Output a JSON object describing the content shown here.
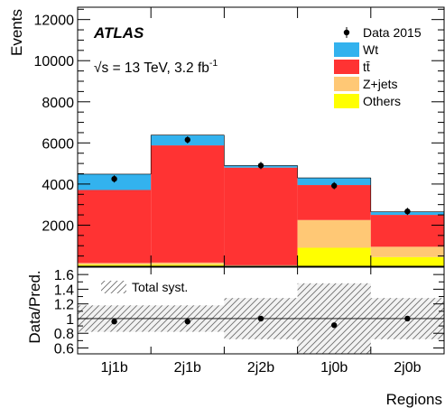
{
  "chart_data": {
    "type": "bar",
    "stacked": true,
    "categories": [
      "1j1b",
      "2j1b",
      "2j2b",
      "1j0b",
      "2j0b"
    ],
    "xlabel": "Regions",
    "ylabel": "Events",
    "ylim": [
      0,
      12600
    ],
    "yticks": [
      2000,
      4000,
      6000,
      8000,
      10000,
      12000
    ],
    "series": [
      {
        "name": "Others",
        "color": "#ffff00",
        "values": [
          80,
          80,
          30,
          900,
          450
        ]
      },
      {
        "name": "Z+jets",
        "color": "#ffc875",
        "values": [
          80,
          100,
          20,
          1350,
          500
        ]
      },
      {
        "name": "tt̄",
        "color": "#ff3333",
        "values": [
          3550,
          5700,
          4750,
          1700,
          1550
        ]
      },
      {
        "name": "Wt",
        "color": "#33b2ee",
        "values": [
          770,
          500,
          100,
          350,
          150
        ]
      }
    ],
    "data": {
      "name": "Data 2015",
      "values": [
        4250,
        6150,
        4900,
        3920,
        2670
      ]
    },
    "legend_position": "top-right",
    "annotations": {
      "experiment": "ATLAS",
      "energy_prefix": "√s = 13 TeV, 3.2 fb",
      "energy_exponent": "-1"
    },
    "ratio_panel": {
      "ylabel": "Data/Pred.",
      "ylim": [
        0.52,
        1.7
      ],
      "yticks": [
        "0.6",
        "0.8",
        "1",
        "1.2",
        "1.4",
        "1.6"
      ],
      "values": [
        0.96,
        0.96,
        1.0,
        0.91,
        1.0
      ],
      "syst_band": [
        {
          "lo": 0.82,
          "hi": 1.18
        },
        {
          "lo": 0.82,
          "hi": 1.18
        },
        {
          "lo": 0.72,
          "hi": 1.28
        },
        {
          "lo": 0.52,
          "hi": 1.48
        },
        {
          "lo": 0.72,
          "hi": 1.28
        }
      ],
      "legend": "Total syst."
    }
  }
}
